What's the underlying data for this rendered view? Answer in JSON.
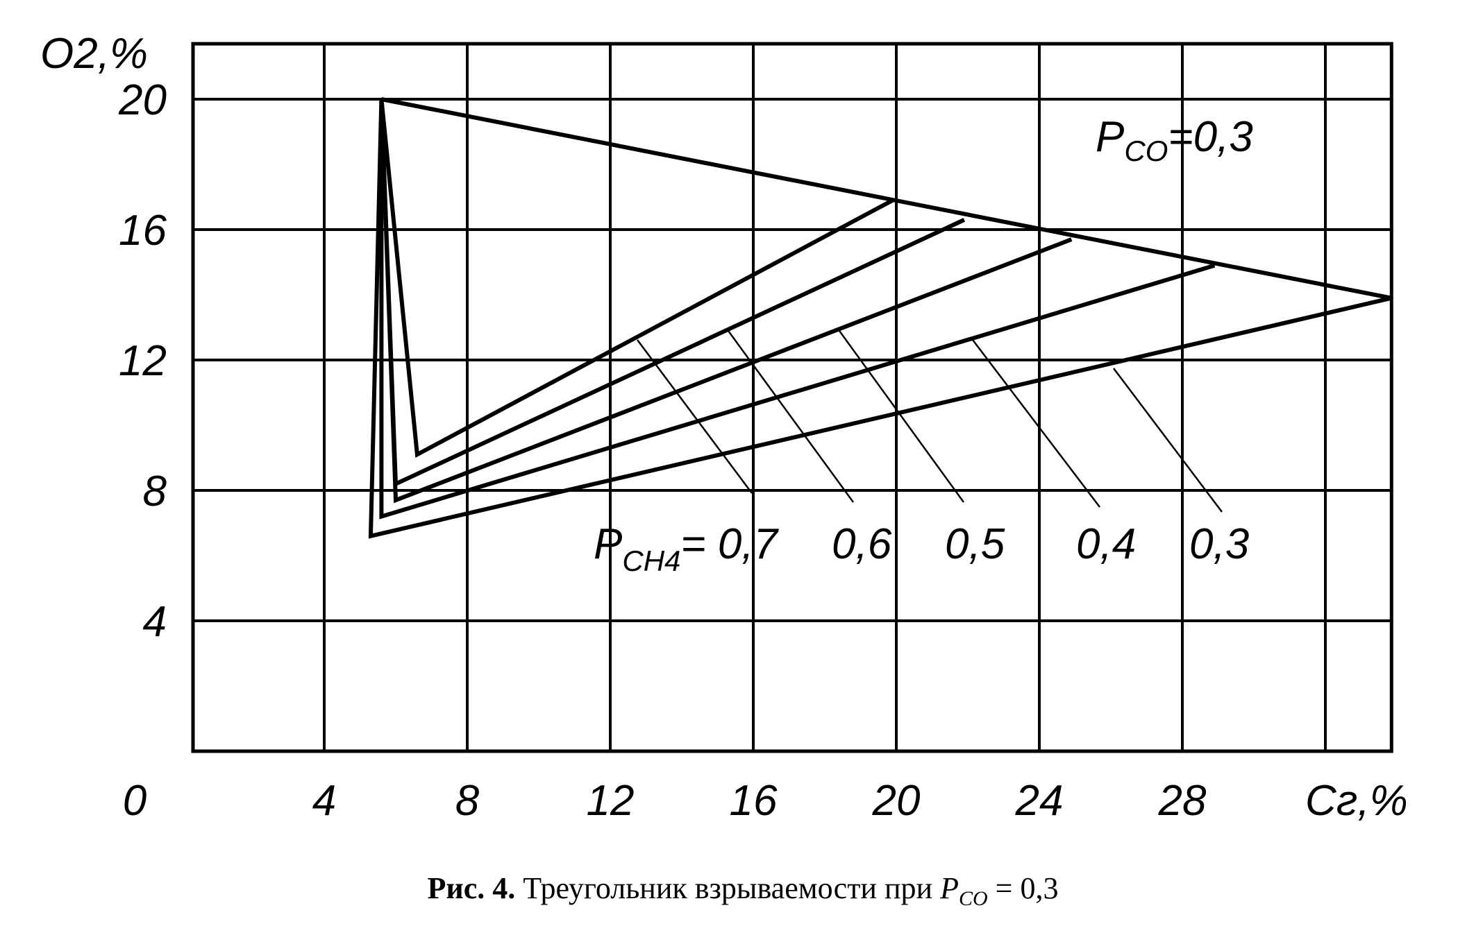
{
  "chart_data": {
    "type": "line",
    "title": "",
    "xlabel": "Cг,%",
    "ylabel": "O2,%",
    "xlim": [
      0.33,
      33.85
    ],
    "ylim": [
      0,
      21.7
    ],
    "grid": true,
    "x_ticks": [
      4,
      8,
      12,
      16,
      20,
      24,
      28,
      32
    ],
    "x_tick_labels": [
      "0",
      "4",
      "8",
      "12",
      "16",
      "20",
      "24",
      "28"
    ],
    "y_ticks": [
      4,
      8,
      12,
      16,
      20
    ],
    "y_tick_labels": [
      "4",
      "8",
      "12",
      "16",
      "20"
    ],
    "annotation": {
      "text": "P",
      "sub": "CO",
      "rest": "=0,3"
    },
    "series_label_prefix": {
      "text": "P",
      "sub": "CH4"
    },
    "upper_limit_line": {
      "x": [
        5.6,
        33.85
      ],
      "y": [
        20,
        13.9
      ]
    },
    "series": [
      {
        "name": "= 0,7",
        "x": [
          5.6,
          6.6,
          19.9
        ],
        "y": [
          20,
          9.1,
          16.9
        ]
      },
      {
        "name": "0,6",
        "x": [
          5.6,
          6.0,
          21.9
        ],
        "y": [
          20,
          8.2,
          16.3
        ]
      },
      {
        "name": "0,5",
        "x": [
          5.6,
          6.0,
          24.9
        ],
        "y": [
          20,
          7.7,
          15.7
        ]
      },
      {
        "name": "0,4",
        "x": [
          5.6,
          5.6,
          28.9
        ],
        "y": [
          20,
          7.2,
          14.9
        ]
      },
      {
        "name": "0,3",
        "x": [
          5.6,
          5.3,
          33.85
        ],
        "y": [
          20,
          6.6,
          13.9
        ]
      }
    ],
    "caption": {
      "bold": "Рис. 4.",
      "text": " Треугольник взрываемости при ",
      "var": "P",
      "sub": "CO",
      "rest": " = 0,3"
    }
  }
}
